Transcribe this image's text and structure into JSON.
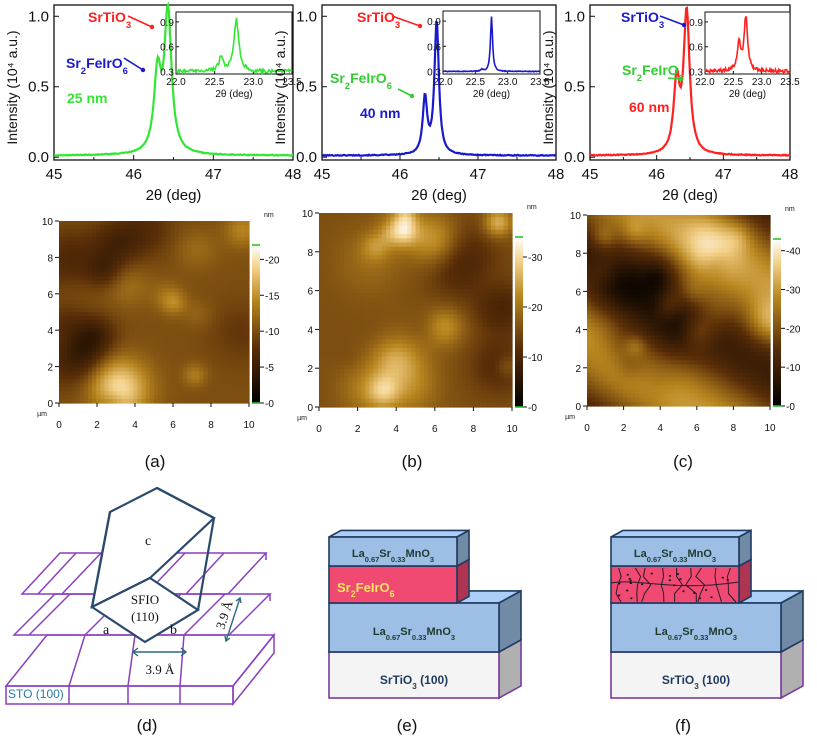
{
  "chart_data": [
    {
      "type": "line",
      "panel": "xrd-25nm",
      "xlabel": "2θ (deg)",
      "ylabel": "Intensity (10⁴ a.u.)",
      "xlim": [
        45,
        48
      ],
      "ylim": [
        -0.02,
        1.08
      ],
      "xticks": [
        "45",
        "46",
        "47",
        "48"
      ],
      "yticks": [
        "0.0",
        "0.5",
        "1.0"
      ],
      "color": "#33e633",
      "peaks": [
        [
          46.3,
          0.55
        ],
        [
          46.43,
          1.0
        ]
      ],
      "thickness_label": "25 nm",
      "labels": {
        "sto": "SrTiO",
        "sto_sub": "3",
        "sto_color": "#ff2020",
        "sfio_base": "Sr",
        "sfio_sub1": "2",
        "sfio_mid": "FeIrO",
        "sfio_sub2": "6",
        "sfio_color": "#1a1acc"
      },
      "inset": {
        "xticks": [
          "22.0",
          "22.5",
          "23.0",
          "23.5"
        ],
        "yticks": [
          "0.3",
          "0.6",
          "0.9"
        ],
        "xlabel": "2θ (deg)",
        "xlim": [
          22.0,
          23.5
        ],
        "ylim": [
          0.27,
          1.02
        ],
        "peaks": [
          [
            22.58,
            0.45
          ],
          [
            22.78,
            0.93
          ]
        ]
      }
    },
    {
      "type": "line",
      "panel": "xrd-40nm",
      "xlabel": "2θ (deg)",
      "ylabel": "Intensity (10⁴ a.u.)",
      "xlim": [
        45,
        48
      ],
      "ylim": [
        -0.02,
        1.08
      ],
      "xticks": [
        "45",
        "46",
        "47",
        "48"
      ],
      "yticks": [
        "0.0",
        "0.5",
        "1.0"
      ],
      "color": "#1a1acc",
      "peaks": [
        [
          46.32,
          0.4
        ],
        [
          46.47,
          0.95
        ]
      ],
      "thickness_label": "40 nm",
      "labels": {
        "sto": "SrTiO",
        "sto_sub": "3",
        "sto_color": "#ff2020",
        "sfio_base": "Sr",
        "sfio_sub1": "2",
        "sfio_mid": "FeIrO",
        "sfio_sub2": "6",
        "sfio_color": "#33cc33"
      },
      "inset": {
        "xticks": [
          "22.0",
          "22.5",
          "23.0",
          "23.5"
        ],
        "yticks": [
          "0.3",
          "0.6",
          "0.9"
        ],
        "xlabel": "2θ (deg)",
        "xlim": [
          22.0,
          23.5
        ],
        "ylim": [
          0.27,
          1.02
        ],
        "peaks": [
          [
            22.6,
            0.32
          ],
          [
            22.75,
            0.95
          ]
        ]
      }
    },
    {
      "type": "line",
      "panel": "xrd-60nm",
      "xlabel": "2θ (deg)",
      "ylabel": "Intensity (10⁴ a.u.)",
      "xlim": [
        45,
        48
      ],
      "ylim": [
        -0.02,
        1.08
      ],
      "xticks": [
        "45",
        "46",
        "47",
        "48"
      ],
      "yticks": [
        "0.0",
        "0.5",
        "1.0"
      ],
      "color": "#ff2020",
      "peaks": [
        [
          46.3,
          0.5
        ],
        [
          46.45,
          1.0
        ]
      ],
      "thickness_label": "60 nm",
      "labels": {
        "sto": "SrTiO",
        "sto_sub": "3",
        "sto_color": "#1a1acc",
        "sfio_base": "Sr",
        "sfio_sub1": "2",
        "sfio_mid": "FeIrO",
        "sfio_sub2": "6",
        "sfio_color": "#33cc33"
      },
      "inset": {
        "xticks": [
          "22.0",
          "22.5",
          "23.0",
          "23.5"
        ],
        "yticks": [
          "0.3",
          "0.6",
          "0.9"
        ],
        "xlabel": "2θ (deg)",
        "xlim": [
          22.0,
          23.5
        ],
        "ylim": [
          0.27,
          1.02
        ],
        "peaks": [
          [
            22.6,
            0.62
          ],
          [
            22.72,
            0.95
          ]
        ]
      }
    },
    {
      "type": "heatmap",
      "panel": "afm-25nm",
      "xlim": [
        0,
        10
      ],
      "ylim": [
        0,
        10
      ],
      "xticks": [
        "0",
        "2",
        "4",
        "6",
        "8",
        "10"
      ],
      "yticks": [
        "0",
        "2",
        "4",
        "6",
        "8",
        "10"
      ],
      "unit_x": "µm",
      "colorbar": {
        "unit": "nm",
        "ticks": [
          "0",
          "5",
          "10",
          "15",
          "20"
        ],
        "max": 22
      },
      "seed": 11
    },
    {
      "type": "heatmap",
      "panel": "afm-40nm",
      "xlim": [
        0,
        10
      ],
      "ylim": [
        0,
        10
      ],
      "xticks": [
        "0",
        "2",
        "4",
        "6",
        "8",
        "10"
      ],
      "yticks": [
        "0",
        "2",
        "4",
        "6",
        "8",
        "10"
      ],
      "unit_x": "µm",
      "colorbar": {
        "unit": "nm",
        "ticks": [
          "0",
          "10",
          "20",
          "30"
        ],
        "max": 34
      },
      "seed": 29
    },
    {
      "type": "heatmap",
      "panel": "afm-60nm",
      "xlim": [
        0,
        10
      ],
      "ylim": [
        0,
        10
      ],
      "xticks": [
        "0",
        "2",
        "4",
        "6",
        "8",
        "10"
      ],
      "yticks": [
        "0",
        "2",
        "4",
        "6",
        "8",
        "10"
      ],
      "unit_x": "µm",
      "colorbar": {
        "unit": "nm",
        "ticks": [
          "0",
          "10",
          "20",
          "30",
          "40"
        ],
        "max": 43
      },
      "seed": 53
    }
  ],
  "captions": {
    "a": "(a)",
    "b": "(b)",
    "c": "(c)",
    "d": "(d)",
    "e": "(e)",
    "f": "(f)"
  },
  "diagram_d": {
    "c_label": "c",
    "a_label": "a",
    "b_label": "b",
    "sfio": "SFIO",
    "sfio_plane": "(110)",
    "lattice": "3.9 Å",
    "lattice_v": "3.9 Å",
    "substrate": "STO (100)"
  },
  "stack_e": {
    "top": "La",
    "top_sub1": "0.67",
    "top_mid": "Sr",
    "top_sub2": "0.33",
    "top_end": "MnO",
    "top_sub3": "3",
    "sfio_base": "Sr",
    "sfio_sub1": "2",
    "sfio_mid": "FeIrO",
    "sfio_sub2": "6",
    "bottom_base": "SrTiO",
    "bottom_sub": "3",
    "bottom_end": " (100)"
  },
  "colors": {
    "lsmo": "#9dbfe6",
    "sfio": "#f04a72",
    "sto": "#f4f4f4",
    "edge": "#1e3a5f",
    "sto_edge": "#7a3aa0",
    "diagram_d": "#8a3fc0",
    "rhombus": "#2a4a6e"
  }
}
